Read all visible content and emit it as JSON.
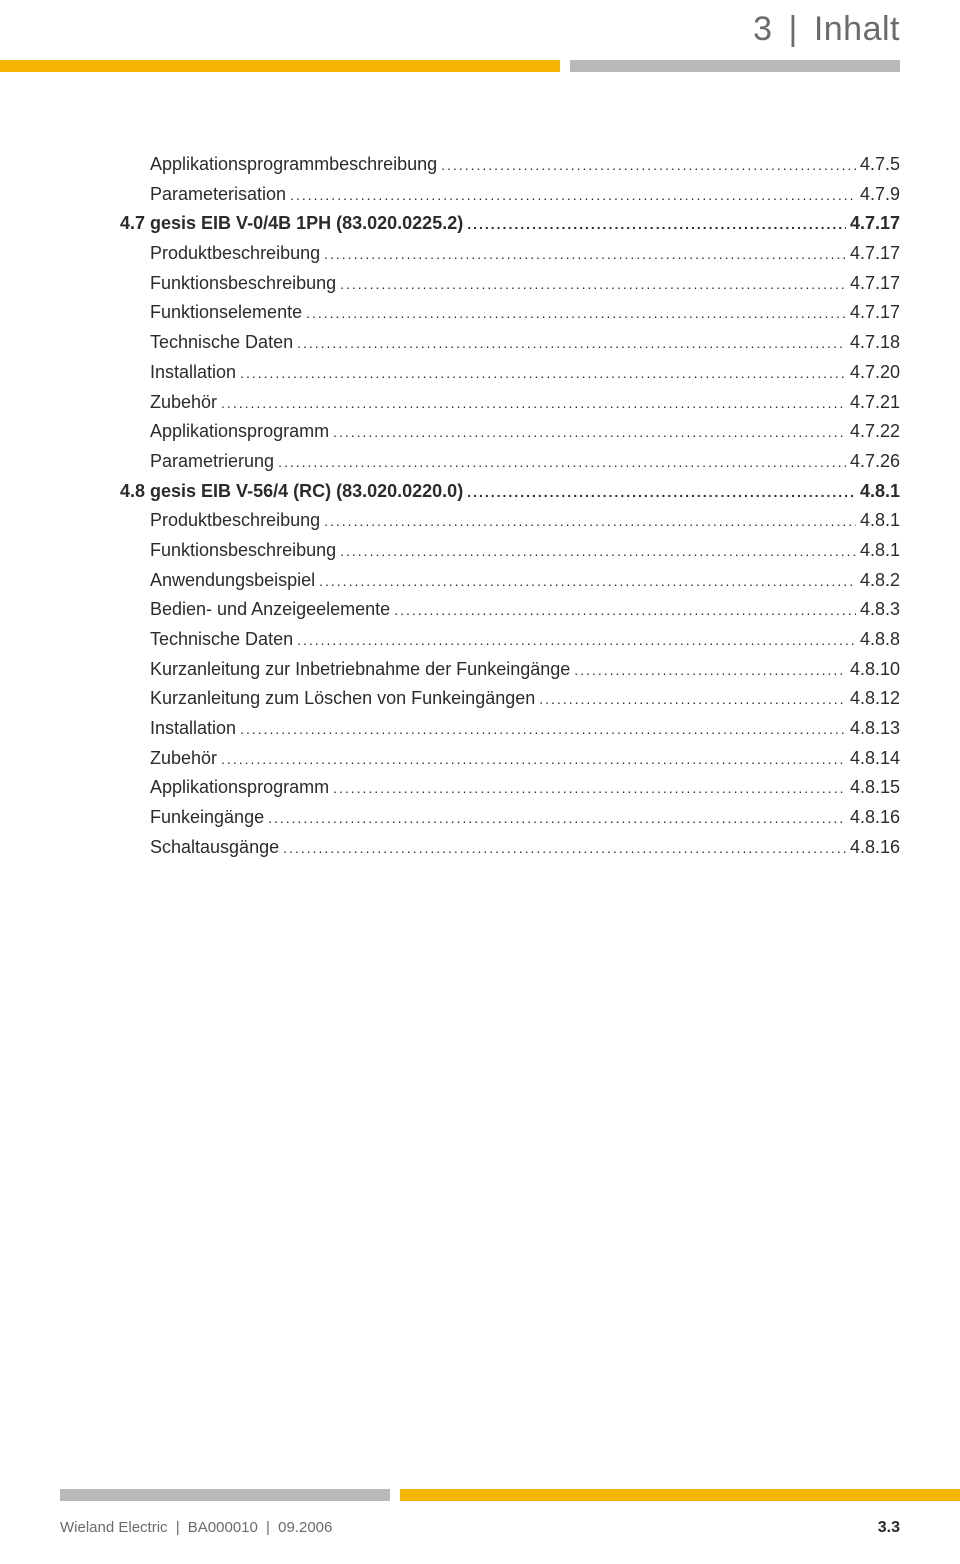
{
  "header": {
    "chapter_num": "3",
    "chapter_title": "Inhalt"
  },
  "colors": {
    "accent": "#f4b400",
    "grey_bar": "#b9b9b9",
    "text": "#2b2b2b",
    "muted": "#6b6b6b",
    "background": "#ffffff"
  },
  "toc": [
    {
      "level": "sub",
      "label": "Applikationsprogrammbeschreibung",
      "page": "4.7.5"
    },
    {
      "level": "sub",
      "label": "Parameterisation",
      "page": "4.7.9"
    },
    {
      "level": "sec",
      "label": "4.7  gesis EIB V-0/4B 1PH (83.020.0225.2)",
      "page": "4.7.17"
    },
    {
      "level": "sub",
      "label": "Produktbeschreibung",
      "page": "4.7.17"
    },
    {
      "level": "sub",
      "label": "Funktionsbeschreibung",
      "page": "4.7.17"
    },
    {
      "level": "sub",
      "label": "Funktionselemente",
      "page": "4.7.17"
    },
    {
      "level": "sub",
      "label": "Technische Daten",
      "page": "4.7.18"
    },
    {
      "level": "sub",
      "label": "Installation",
      "page": "4.7.20"
    },
    {
      "level": "sub",
      "label": "Zubehör",
      "page": "4.7.21"
    },
    {
      "level": "sub",
      "label": "Applikationsprogramm",
      "page": "4.7.22"
    },
    {
      "level": "sub",
      "label": "Parametrierung",
      "page": "4.7.26"
    },
    {
      "level": "sec",
      "label": "4.8  gesis EIB V-56/4 (RC) (83.020.0220.0)",
      "page": "4.8.1"
    },
    {
      "level": "sub",
      "label": "Produktbeschreibung",
      "page": "4.8.1"
    },
    {
      "level": "sub",
      "label": "Funktionsbeschreibung",
      "page": "4.8.1"
    },
    {
      "level": "sub",
      "label": "Anwendungsbeispiel",
      "page": "4.8.2"
    },
    {
      "level": "sub",
      "label": "Bedien- und Anzeigeelemente",
      "page": "4.8.3"
    },
    {
      "level": "sub",
      "label": "Technische Daten",
      "page": "4.8.8"
    },
    {
      "level": "sub",
      "label": "Kurzanleitung zur Inbetriebnahme der Funkeingänge",
      "page": "4.8.10"
    },
    {
      "level": "sub",
      "label": "Kurzanleitung zum Löschen von Funkeingängen",
      "page": "4.8.12"
    },
    {
      "level": "sub",
      "label": "Installation",
      "page": "4.8.13"
    },
    {
      "level": "sub",
      "label": "Zubehör",
      "page": "4.8.14"
    },
    {
      "level": "sub",
      "label": "Applikationsprogramm",
      "page": "4.8.15"
    },
    {
      "level": "sub",
      "label": "Funkeingänge",
      "page": "4.8.16"
    },
    {
      "level": "sub",
      "label": "Schaltausgänge",
      "page": "4.8.16"
    }
  ],
  "footer": {
    "company": "Wieland Electric",
    "doc_id": "BA000010",
    "date": "09.2006",
    "page_num": "3.3"
  }
}
